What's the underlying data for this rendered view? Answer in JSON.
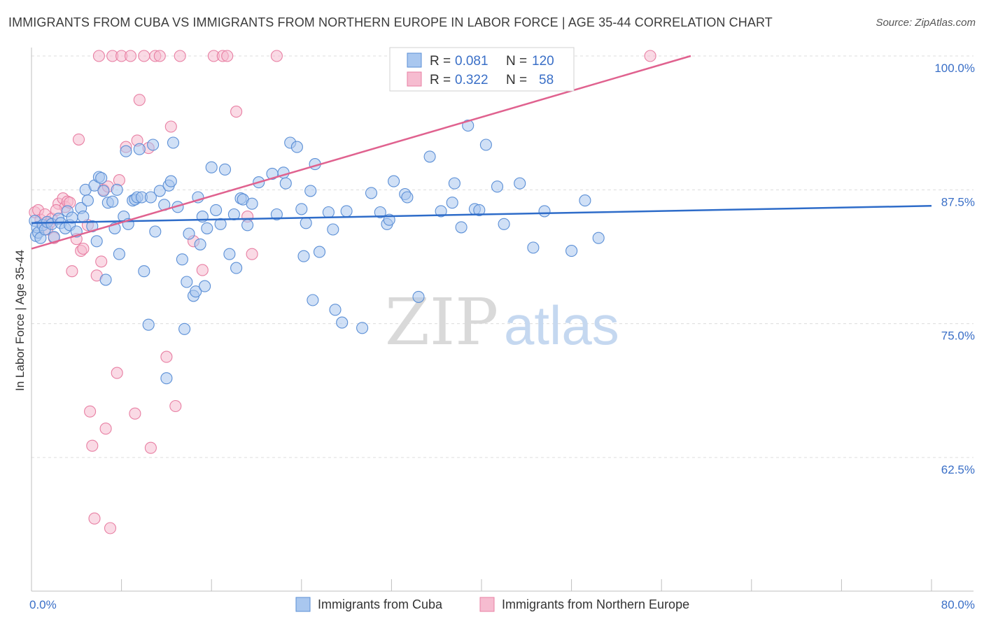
{
  "title": "IMMIGRANTS FROM CUBA VS IMMIGRANTS FROM NORTHERN EUROPE IN LABOR FORCE | AGE 35-44 CORRELATION CHART",
  "source": "Source: ZipAtlas.com",
  "watermark": {
    "zip": "ZIP",
    "atlas": "atlas"
  },
  "colors": {
    "blue_fill": "#a9c7ef",
    "blue_stroke": "#5b8fd6",
    "blue_line": "#2e6cc9",
    "pink_fill": "#f6bcd0",
    "pink_stroke": "#e87fa3",
    "pink_line": "#e0628f",
    "grid": "#dcdcdc",
    "axis_label": "#3a6fc7"
  },
  "chart_data": {
    "type": "scatter",
    "title": "IMMIGRANTS FROM CUBA VS IMMIGRANTS FROM NORTHERN EUROPE IN LABOR FORCE | AGE 35-44 CORRELATION CHART",
    "xlabel": "",
    "ylabel": "In Labor Force | Age 35-44",
    "xlim": [
      0,
      80
    ],
    "ylim": [
      50,
      100
    ],
    "x_tick_labels": [
      "0.0%",
      "80.0%"
    ],
    "y_ticks": [
      62.5,
      75.0,
      87.5,
      100.0
    ],
    "y_tick_labels": [
      "62.5%",
      "75.0%",
      "87.5%",
      "100.0%"
    ],
    "legend": {
      "position": "top-center",
      "entries": [
        {
          "r_label": "R =",
          "r_value": "0.081",
          "n_label": "N =",
          "n_value": "120"
        },
        {
          "r_label": "R =",
          "r_value": "0.322",
          "n_label": "N =",
          "n_value": "58"
        }
      ]
    },
    "bottom_legend": [
      "Immigrants from Cuba",
      "Immigrants from Northern Europe"
    ],
    "series": [
      {
        "name": "Immigrants from Cuba",
        "color": "blue",
        "trendline": {
          "x": [
            0,
            80
          ],
          "y": [
            84.4,
            86.0
          ]
        },
        "points": [
          [
            0.3,
            84.6
          ],
          [
            0.4,
            83.2
          ],
          [
            0.5,
            84.0
          ],
          [
            0.6,
            83.5
          ],
          [
            0.8,
            83.0
          ],
          [
            1.0,
            84.2
          ],
          [
            1.2,
            83.8
          ],
          [
            1.4,
            84.5
          ],
          [
            1.8,
            84.3
          ],
          [
            2.0,
            83.1
          ],
          [
            2.4,
            84.8
          ],
          [
            2.6,
            84.4
          ],
          [
            3.0,
            83.9
          ],
          [
            3.2,
            85.5
          ],
          [
            3.4,
            84.2
          ],
          [
            3.6,
            84.9
          ],
          [
            4.0,
            83.6
          ],
          [
            4.4,
            85.8
          ],
          [
            4.6,
            85.0
          ],
          [
            4.8,
            87.5
          ],
          [
            5.0,
            86.5
          ],
          [
            5.4,
            84.1
          ],
          [
            5.6,
            87.9
          ],
          [
            5.8,
            82.7
          ],
          [
            6.0,
            88.7
          ],
          [
            6.2,
            88.6
          ],
          [
            6.4,
            87.4
          ],
          [
            6.6,
            79.1
          ],
          [
            6.8,
            86.3
          ],
          [
            7.2,
            86.4
          ],
          [
            7.4,
            83.9
          ],
          [
            7.6,
            87.5
          ],
          [
            7.8,
            81.5
          ],
          [
            8.2,
            85.0
          ],
          [
            8.4,
            91.1
          ],
          [
            8.6,
            84.3
          ],
          [
            9.0,
            86.5
          ],
          [
            9.2,
            86.6
          ],
          [
            9.4,
            86.8
          ],
          [
            9.6,
            91.3
          ],
          [
            9.8,
            86.8
          ],
          [
            10.0,
            79.9
          ],
          [
            10.4,
            74.9
          ],
          [
            10.6,
            86.8
          ],
          [
            10.8,
            91.7
          ],
          [
            11.0,
            83.6
          ],
          [
            11.4,
            87.4
          ],
          [
            11.8,
            86.1
          ],
          [
            12.0,
            69.9
          ],
          [
            12.2,
            87.9
          ],
          [
            12.4,
            88.3
          ],
          [
            12.6,
            91.9
          ],
          [
            13.0,
            85.9
          ],
          [
            13.4,
            81.0
          ],
          [
            13.6,
            74.5
          ],
          [
            13.8,
            78.9
          ],
          [
            14.0,
            83.4
          ],
          [
            14.4,
            77.6
          ],
          [
            14.6,
            78.0
          ],
          [
            14.8,
            86.8
          ],
          [
            15.0,
            82.4
          ],
          [
            15.2,
            85.0
          ],
          [
            15.4,
            78.5
          ],
          [
            15.6,
            83.9
          ],
          [
            16.0,
            89.6
          ],
          [
            16.4,
            85.6
          ],
          [
            16.8,
            84.3
          ],
          [
            17.2,
            89.4
          ],
          [
            17.6,
            81.5
          ],
          [
            18.0,
            85.2
          ],
          [
            18.2,
            80.2
          ],
          [
            18.6,
            86.7
          ],
          [
            18.8,
            86.6
          ],
          [
            19.2,
            84.2
          ],
          [
            19.6,
            86.2
          ],
          [
            20.2,
            88.2
          ],
          [
            21.4,
            89.0
          ],
          [
            21.8,
            85.2
          ],
          [
            22.4,
            89.1
          ],
          [
            22.6,
            88.1
          ],
          [
            23.0,
            91.9
          ],
          [
            23.6,
            91.5
          ],
          [
            24.0,
            85.7
          ],
          [
            24.2,
            81.3
          ],
          [
            24.4,
            84.4
          ],
          [
            24.8,
            87.4
          ],
          [
            25.0,
            77.2
          ],
          [
            25.2,
            89.9
          ],
          [
            25.6,
            81.7
          ],
          [
            26.4,
            85.4
          ],
          [
            26.8,
            83.8
          ],
          [
            27.0,
            76.3
          ],
          [
            27.6,
            75.1
          ],
          [
            28.0,
            85.5
          ],
          [
            29.4,
            74.6
          ],
          [
            30.2,
            87.2
          ],
          [
            31.0,
            85.4
          ],
          [
            31.6,
            84.3
          ],
          [
            31.8,
            84.7
          ],
          [
            32.2,
            88.3
          ],
          [
            33.2,
            87.1
          ],
          [
            33.4,
            86.8
          ],
          [
            34.4,
            77.5
          ],
          [
            35.4,
            90.6
          ],
          [
            36.4,
            85.5
          ],
          [
            37.4,
            86.3
          ],
          [
            37.6,
            88.1
          ],
          [
            38.2,
            84.0
          ],
          [
            38.8,
            93.5
          ],
          [
            39.4,
            85.7
          ],
          [
            39.8,
            85.6
          ],
          [
            40.4,
            91.7
          ],
          [
            41.4,
            87.8
          ],
          [
            42.0,
            84.3
          ],
          [
            43.4,
            88.1
          ],
          [
            44.6,
            82.1
          ],
          [
            45.6,
            85.5
          ],
          [
            48.0,
            81.8
          ],
          [
            49.2,
            86.5
          ],
          [
            50.4,
            83.0
          ]
        ]
      },
      {
        "name": "Immigrants from Northern Europe",
        "color": "pink",
        "trendline": {
          "x": [
            0,
            58.6
          ],
          "y": [
            82.0,
            100.0
          ]
        },
        "points": [
          [
            0.3,
            85.4
          ],
          [
            0.6,
            85.6
          ],
          [
            0.8,
            84.7
          ],
          [
            1.2,
            85.2
          ],
          [
            1.6,
            84.4
          ],
          [
            1.8,
            84.8
          ],
          [
            2.0,
            83.0
          ],
          [
            2.4,
            86.2
          ],
          [
            2.8,
            86.7
          ],
          [
            3.0,
            85.9
          ],
          [
            3.2,
            86.4
          ],
          [
            3.6,
            79.9
          ],
          [
            4.0,
            82.9
          ],
          [
            4.4,
            81.8
          ],
          [
            4.6,
            82.0
          ],
          [
            5.0,
            84.2
          ],
          [
            5.2,
            66.8
          ],
          [
            5.4,
            63.6
          ],
          [
            5.6,
            56.8
          ],
          [
            5.8,
            79.5
          ],
          [
            6.0,
            100.0
          ],
          [
            6.2,
            80.8
          ],
          [
            6.4,
            87.5
          ],
          [
            6.6,
            65.2
          ],
          [
            7.0,
            55.9
          ],
          [
            7.2,
            100.0
          ],
          [
            7.6,
            70.4
          ],
          [
            8.0,
            100.0
          ],
          [
            8.4,
            91.5
          ],
          [
            8.8,
            100.0
          ],
          [
            9.2,
            66.6
          ],
          [
            9.6,
            95.9
          ],
          [
            10.0,
            100.0
          ],
          [
            10.4,
            91.4
          ],
          [
            10.6,
            63.4
          ],
          [
            11.0,
            100.0
          ],
          [
            11.4,
            100.0
          ],
          [
            12.0,
            71.9
          ],
          [
            12.4,
            93.4
          ],
          [
            12.8,
            67.3
          ],
          [
            13.2,
            100.0
          ],
          [
            14.4,
            82.7
          ],
          [
            15.2,
            80.0
          ],
          [
            16.2,
            100.0
          ],
          [
            17.0,
            100.0
          ],
          [
            17.4,
            100.0
          ],
          [
            18.2,
            94.8
          ],
          [
            19.2,
            85.0
          ],
          [
            19.6,
            81.5
          ],
          [
            21.8,
            100.0
          ],
          [
            55.0,
            100.0
          ],
          [
            7.8,
            88.4
          ],
          [
            9.4,
            92.1
          ],
          [
            6.8,
            87.8
          ],
          [
            4.2,
            92.2
          ],
          [
            3.4,
            86.3
          ],
          [
            2.2,
            85.6
          ],
          [
            1.4,
            83.8
          ]
        ]
      }
    ]
  }
}
